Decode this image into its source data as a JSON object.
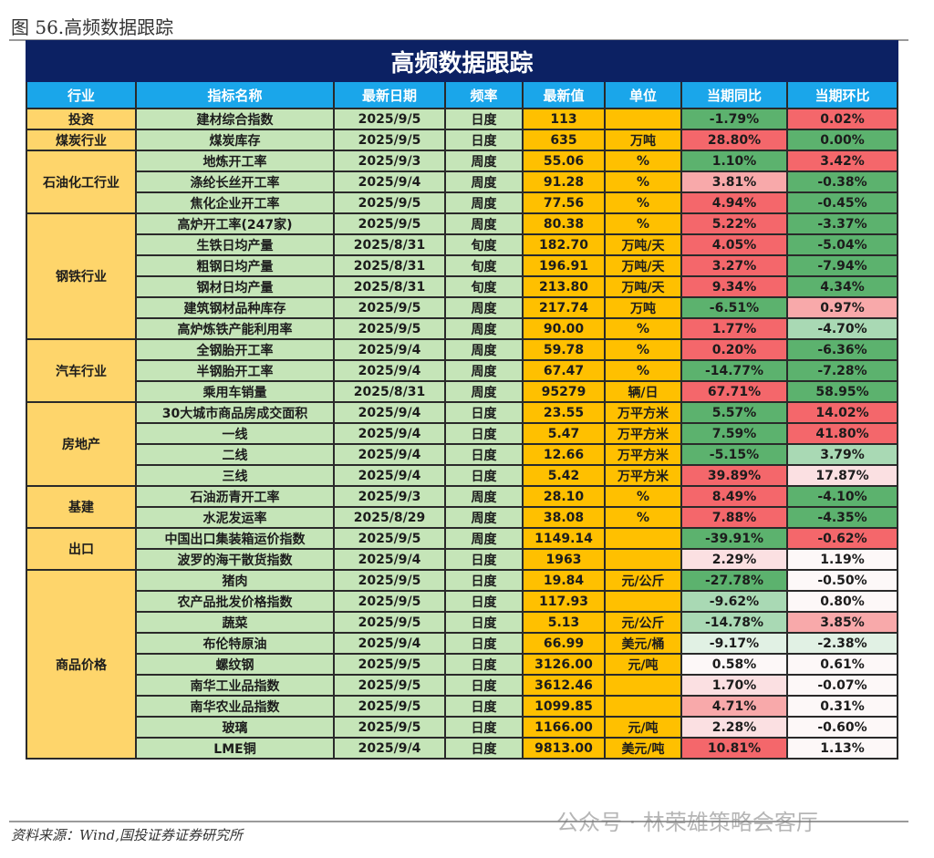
{
  "caption": "图 56.高频数据跟踪",
  "table_title": "高频数据跟踪",
  "headers": [
    "行业",
    "指标名称",
    "最新日期",
    "频率",
    "最新值",
    "单位",
    "当期同比",
    "当期环比"
  ],
  "colors": {
    "R": "#f4676b",
    "r": "#f8a9aa",
    "p": "#fbe0e2",
    "w": "#fdf8f8",
    "g": "#5cb26e",
    "lg": "#a9d9b4",
    "pg": "#e1f1e4"
  },
  "groups": [
    {
      "industry": "投资",
      "rows": [
        [
          "建材综合指数",
          "2025/9/5",
          "日度",
          "113",
          "",
          "-1.79%",
          "g",
          "0.02%",
          "R"
        ]
      ]
    },
    {
      "industry": "煤炭行业",
      "rows": [
        [
          "煤炭库存",
          "2025/9/5",
          "日度",
          "635",
          "万吨",
          "28.80%",
          "R",
          "0.00%",
          "g"
        ]
      ]
    },
    {
      "industry": "石油化工行业",
      "rows": [
        [
          "地炼开工率",
          "2025/9/3",
          "周度",
          "55.06",
          "%",
          "1.10%",
          "g",
          "3.42%",
          "R"
        ],
        [
          "涤纶长丝开工率",
          "2025/9/4",
          "周度",
          "91.28",
          "%",
          "3.81%",
          "r",
          "-0.38%",
          "g"
        ],
        [
          "焦化企业开工率",
          "2025/9/5",
          "周度",
          "77.56",
          "%",
          "4.94%",
          "R",
          "-0.45%",
          "g"
        ]
      ]
    },
    {
      "industry": "钢铁行业",
      "rows": [
        [
          "高炉开工率(247家)",
          "2025/9/5",
          "周度",
          "80.38",
          "%",
          "5.22%",
          "R",
          "-3.37%",
          "g"
        ],
        [
          "生铁日均产量",
          "2025/8/31",
          "旬度",
          "182.70",
          "万吨/天",
          "4.05%",
          "R",
          "-5.04%",
          "g"
        ],
        [
          "粗钢日均产量",
          "2025/8/31",
          "旬度",
          "196.91",
          "万吨/天",
          "3.27%",
          "R",
          "-7.94%",
          "g"
        ],
        [
          "钢材日均产量",
          "2025/8/31",
          "旬度",
          "213.80",
          "万吨/天",
          "9.34%",
          "R",
          "4.34%",
          "g"
        ],
        [
          "建筑钢材品种库存",
          "2025/9/5",
          "周度",
          "217.74",
          "万吨",
          "-6.51%",
          "g",
          "0.97%",
          "r"
        ],
        [
          "高炉炼铁产能利用率",
          "2025/9/5",
          "周度",
          "90.00",
          "%",
          "1.77%",
          "R",
          "-4.70%",
          "lg"
        ]
      ]
    },
    {
      "industry": "汽车行业",
      "rows": [
        [
          "全钢胎开工率",
          "2025/9/4",
          "周度",
          "59.78",
          "%",
          "0.20%",
          "R",
          "-6.36%",
          "g"
        ],
        [
          "半钢胎开工率",
          "2025/9/4",
          "周度",
          "67.47",
          "%",
          "-14.77%",
          "g",
          "-7.28%",
          "g"
        ],
        [
          "乘用车销量",
          "2025/8/31",
          "周度",
          "95279",
          "辆/日",
          "67.71%",
          "R",
          "58.95%",
          "g"
        ]
      ]
    },
    {
      "industry": "房地产",
      "rows": [
        [
          "30大城市商品房成交面积",
          "2025/9/4",
          "日度",
          "23.55",
          "万平方米",
          "5.57%",
          "g",
          "14.02%",
          "R"
        ],
        [
          "一线",
          "2025/9/4",
          "日度",
          "5.47",
          "万平方米",
          "7.59%",
          "g",
          "41.80%",
          "R"
        ],
        [
          "二线",
          "2025/9/4",
          "日度",
          "12.66",
          "万平方米",
          "-5.15%",
          "g",
          "3.79%",
          "lg"
        ],
        [
          "三线",
          "2025/9/4",
          "日度",
          "5.42",
          "万平方米",
          "39.89%",
          "R",
          "17.87%",
          "p"
        ]
      ]
    },
    {
      "industry": "基建",
      "rows": [
        [
          "石油沥青开工率",
          "2025/9/3",
          "周度",
          "28.10",
          "%",
          "8.49%",
          "R",
          "-4.10%",
          "g"
        ],
        [
          "水泥发运率",
          "2025/8/29",
          "周度",
          "38.08",
          "%",
          "7.88%",
          "R",
          "-4.35%",
          "g"
        ]
      ]
    },
    {
      "industry": "出口",
      "rows": [
        [
          "中国出口集装箱运价指数",
          "2025/9/5",
          "周度",
          "1149.14",
          "",
          "-39.91%",
          "g",
          "-0.62%",
          "R"
        ],
        [
          "波罗的海干散货指数",
          "2025/9/4",
          "日度",
          "1963",
          "",
          "2.29%",
          "p",
          "1.19%",
          "w"
        ]
      ]
    },
    {
      "industry": "商品价格",
      "rows": [
        [
          "猪肉",
          "2025/9/5",
          "日度",
          "19.84",
          "元/公斤",
          "-27.78%",
          "g",
          "-0.50%",
          "w"
        ],
        [
          "农产品批发价格指数",
          "2025/9/5",
          "日度",
          "117.93",
          "",
          "-9.62%",
          "lg",
          "0.80%",
          "w"
        ],
        [
          "蔬菜",
          "2025/9/5",
          "日度",
          "5.13",
          "元/公斤",
          "-14.78%",
          "lg",
          "3.85%",
          "r"
        ],
        [
          "布伦特原油",
          "2025/9/4",
          "日度",
          "66.99",
          "美元/桶",
          "-9.17%",
          "pg",
          "-2.38%",
          "pg"
        ],
        [
          "螺纹钢",
          "2025/9/5",
          "日度",
          "3126.00",
          "元/吨",
          "0.58%",
          "w",
          "0.61%",
          "w"
        ],
        [
          "南华工业品指数",
          "2025/9/5",
          "日度",
          "3612.46",
          "",
          "1.70%",
          "p",
          "-0.07%",
          "w"
        ],
        [
          "南华农业品指数",
          "2025/9/5",
          "日度",
          "1099.85",
          "",
          "4.71%",
          "r",
          "0.31%",
          "w"
        ],
        [
          "玻璃",
          "2025/9/5",
          "日度",
          "1166.00",
          "元/吨",
          "2.28%",
          "p",
          "-0.60%",
          "w"
        ],
        [
          "LME铜",
          "2025/9/4",
          "日度",
          "9813.00",
          "美元/吨",
          "10.81%",
          "R",
          "1.13%",
          "w"
        ]
      ]
    }
  ],
  "source": "资料来源：Wind,国投证券证券研究所",
  "watermark": "公众号 · 林荣雄策略会客厅"
}
